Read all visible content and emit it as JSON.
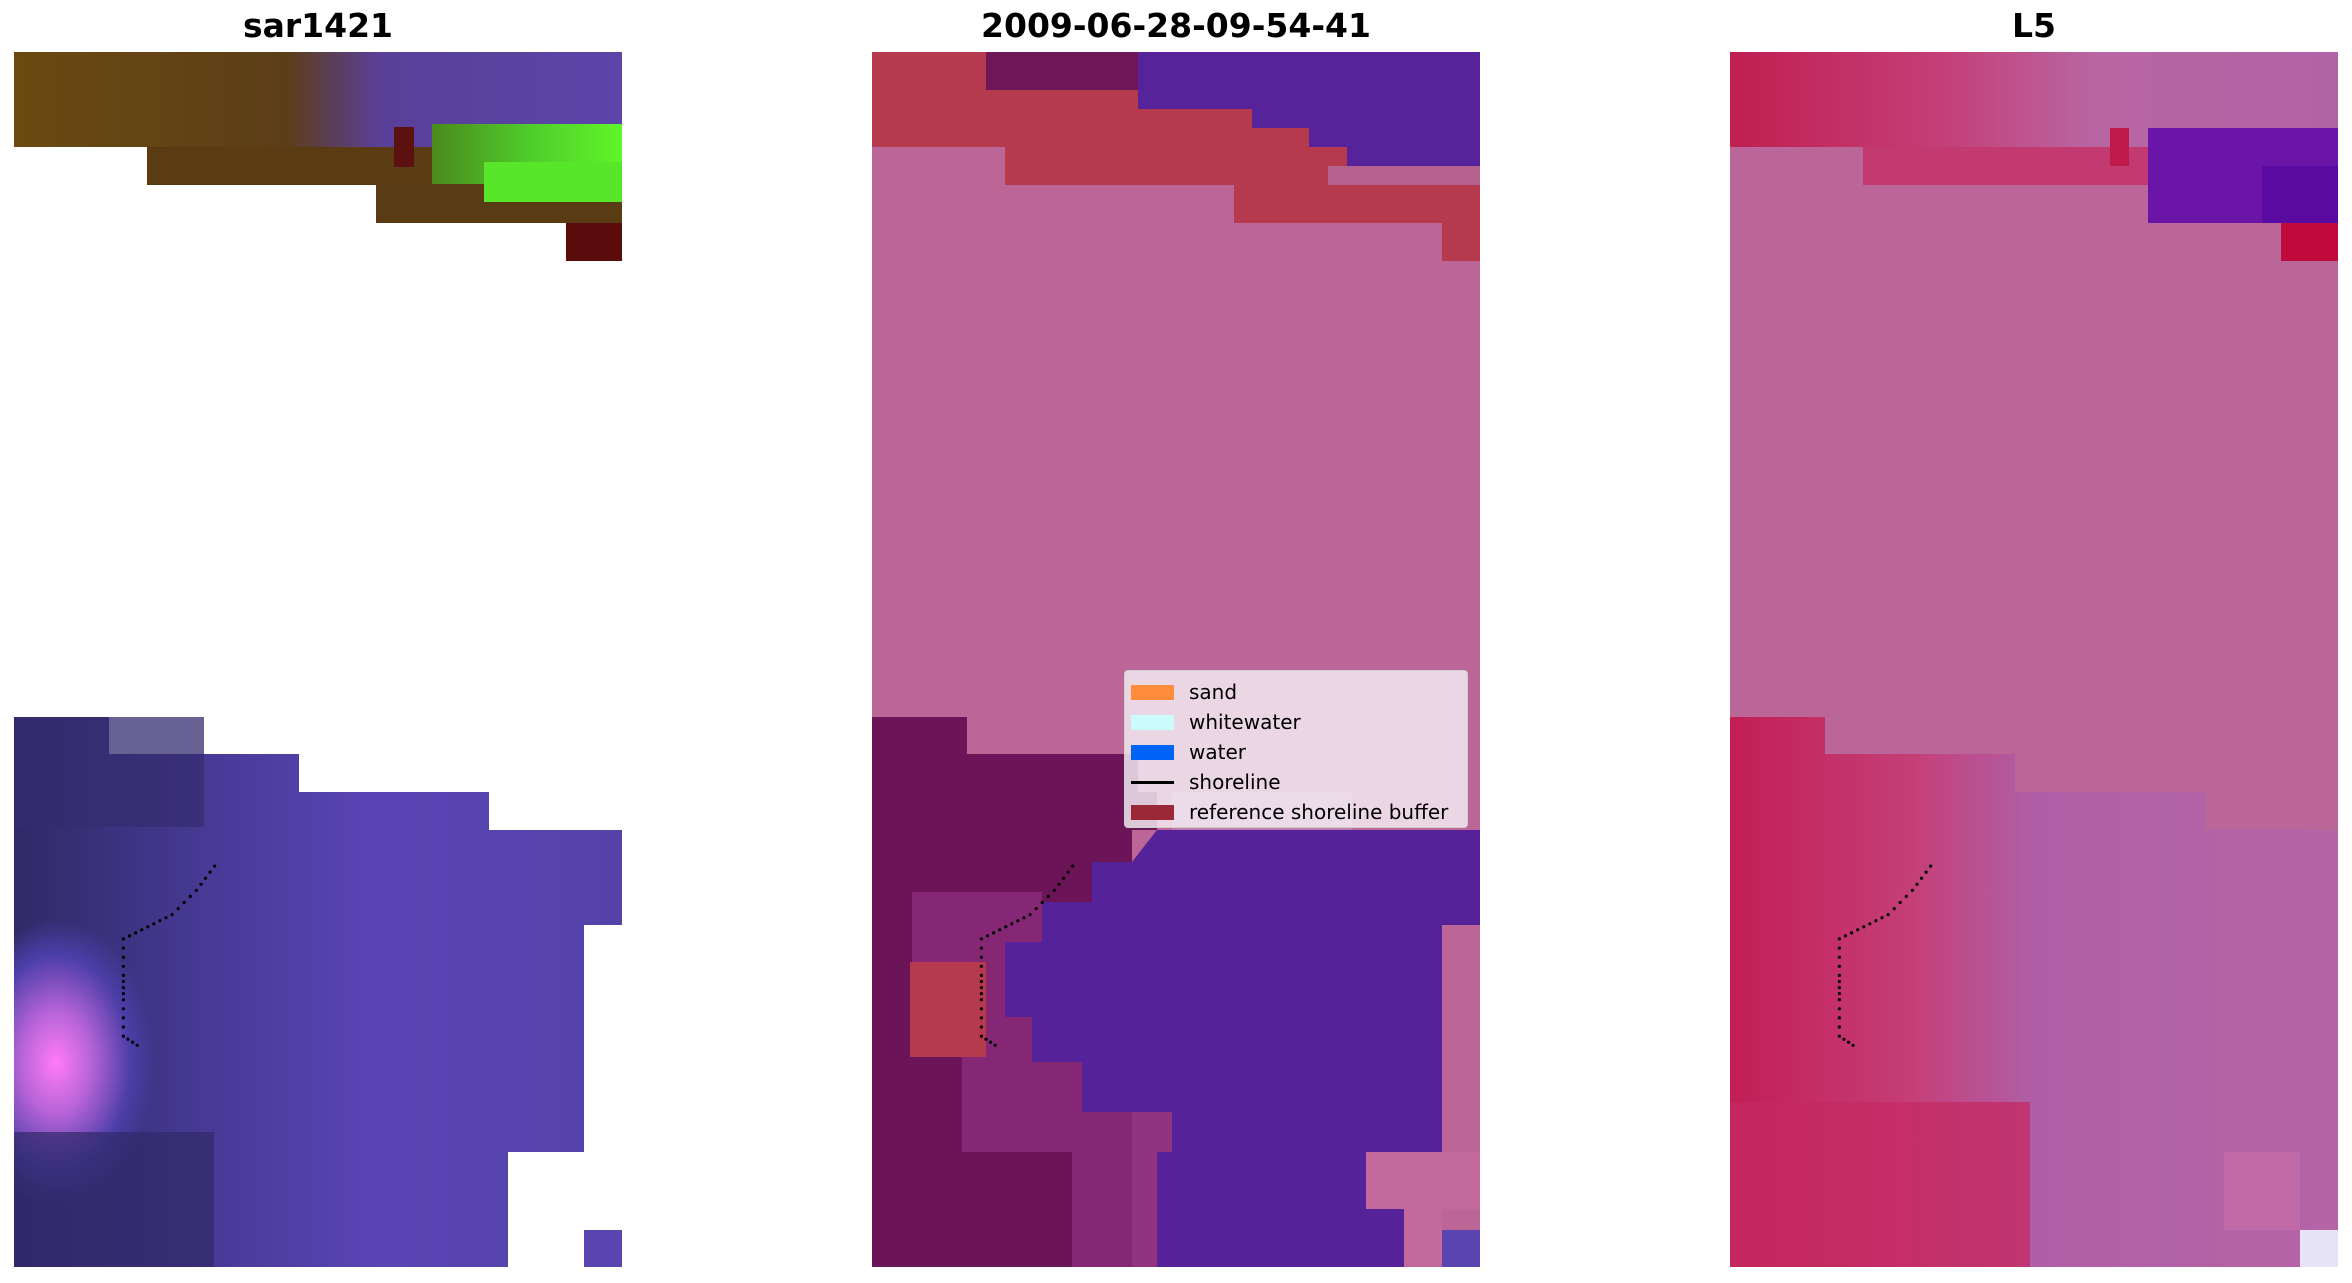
{
  "chart_data": [
    {
      "type": "heatmap",
      "title": "sar1421",
      "axes": "off",
      "colors": {
        "vegetation": "#6a4a0f",
        "bright_green": "#5ff22a",
        "dark_red": "#5a0c0c",
        "water_purple": "#5a45b0",
        "deep_navy": "#34296a",
        "magenta": "#ff78f5"
      },
      "shoreline_points": [
        [
          0.33,
          0.67
        ],
        [
          0.3,
          0.69
        ],
        [
          0.26,
          0.71
        ],
        [
          0.22,
          0.72
        ],
        [
          0.18,
          0.73
        ],
        [
          0.18,
          0.76
        ],
        [
          0.18,
          0.78
        ],
        [
          0.18,
          0.81
        ],
        [
          0.21,
          0.82
        ]
      ]
    },
    {
      "type": "heatmap",
      "title": "2009-06-28-09-54-41",
      "axes": "off",
      "colors": {
        "sand_pink": "#bb6696",
        "red": "#b53a4d",
        "dark_purple": "#6a1458",
        "water": "#55229a",
        "light_pink": "#c4699b"
      },
      "legend": {
        "placement": "center-right",
        "entries": [
          {
            "label": "sand",
            "color": "#ff8c3c",
            "kind": "patch"
          },
          {
            "label": "whitewater",
            "color": "#ccfbfc",
            "kind": "patch"
          },
          {
            "label": "water",
            "color": "#0063f5",
            "kind": "patch"
          },
          {
            "label": "shoreline",
            "color": "#000000",
            "kind": "line"
          },
          {
            "label": "reference shoreline buffer",
            "color": "#9a2836",
            "kind": "patch"
          }
        ]
      }
    },
    {
      "type": "heatmap",
      "title": "L5",
      "axes": "off",
      "colors": {
        "pink": "#bb6699",
        "crimson": "#c22b5e",
        "purple": "#6b14a8",
        "mauve": "#b564a4",
        "light_lavender": "#e8e4f8"
      }
    }
  ]
}
